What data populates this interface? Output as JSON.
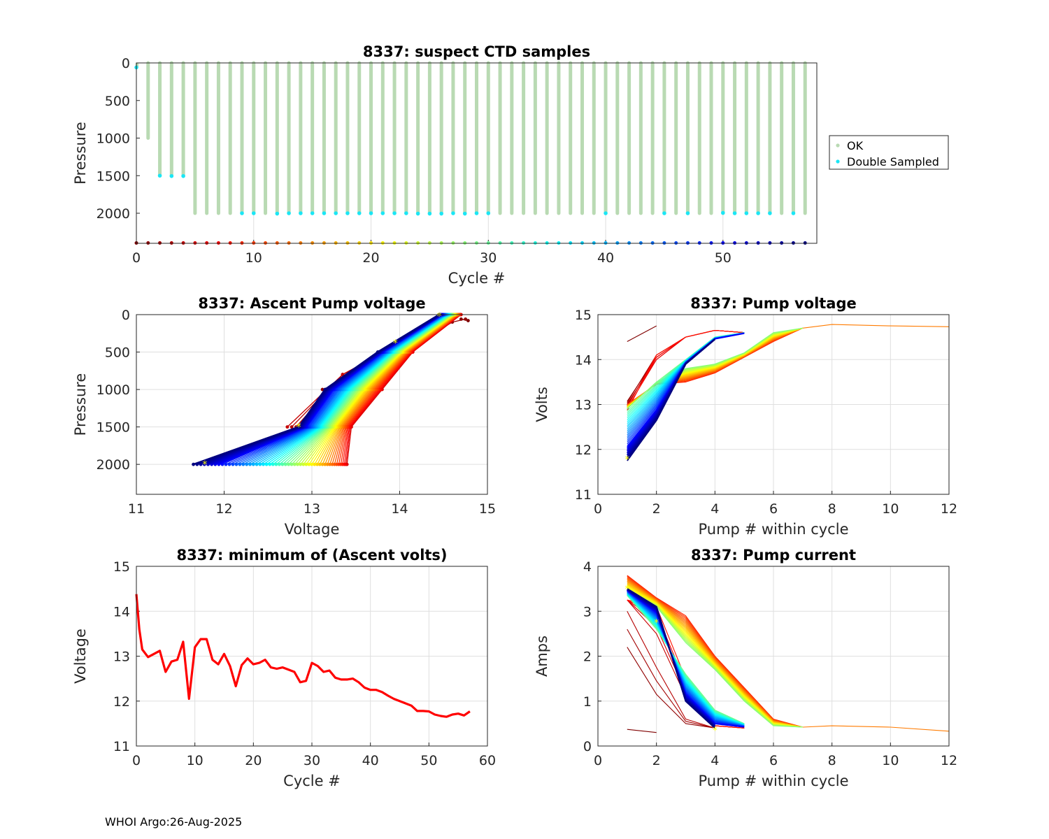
{
  "footer": "WHOI Argo:26-Aug-2025",
  "colors": {
    "ok": "#b9dab3",
    "double": "#1be6f5",
    "line": "#ff0000",
    "grid": "#dfdfdf",
    "marker": "#ffff00"
  },
  "chart_data": [
    {
      "id": "suspect",
      "type": "scatter",
      "title": "8337: suspect CTD samples",
      "xlabel": "Cycle #",
      "ylabel": "Pressure",
      "xlim": [
        0,
        58
      ],
      "ylim": [
        2400,
        0
      ],
      "xticks": [
        0,
        10,
        20,
        30,
        40,
        50
      ],
      "yticks": [
        0,
        500,
        1000,
        1500,
        2000
      ],
      "legend": {
        "position": "outside-right",
        "entries": [
          "OK",
          "Double Sampled"
        ]
      },
      "profile_max_pressure": [
        0,
        1000,
        1500,
        1500,
        1500,
        2000,
        2000,
        2000,
        2000,
        2000,
        2000,
        2000,
        2000,
        2000,
        2000,
        2000,
        2000,
        2000,
        2000,
        2000,
        2000,
        2000,
        2000,
        2000,
        2000,
        2000,
        2000,
        2000,
        2000,
        2000,
        2000,
        2000,
        2000,
        2000,
        2000,
        2000,
        2000,
        2000,
        2000,
        2000,
        2000,
        2000,
        2000,
        2000,
        2000,
        2000,
        2000,
        2000,
        2000,
        2000,
        2000,
        2000,
        2000,
        2000,
        2000,
        2000,
        2000,
        2000
      ],
      "double_sampled": [
        {
          "cycle": 0,
          "pressure": 60
        },
        {
          "cycle": 2,
          "pressure": 1500
        },
        {
          "cycle": 3,
          "pressure": 1505
        },
        {
          "cycle": 4,
          "pressure": 1505
        },
        {
          "cycle": 9,
          "pressure": 2000
        },
        {
          "cycle": 10,
          "pressure": 2000
        },
        {
          "cycle": 12,
          "pressure": 2005
        },
        {
          "cycle": 13,
          "pressure": 2000
        },
        {
          "cycle": 14,
          "pressure": 2000
        },
        {
          "cycle": 15,
          "pressure": 2000
        },
        {
          "cycle": 16,
          "pressure": 2000
        },
        {
          "cycle": 17,
          "pressure": 2000
        },
        {
          "cycle": 18,
          "pressure": 2000
        },
        {
          "cycle": 19,
          "pressure": 2000
        },
        {
          "cycle": 20,
          "pressure": 2000
        },
        {
          "cycle": 21,
          "pressure": 2000
        },
        {
          "cycle": 22,
          "pressure": 2000
        },
        {
          "cycle": 23,
          "pressure": 2000
        },
        {
          "cycle": 24,
          "pressure": 2005
        },
        {
          "cycle": 25,
          "pressure": 2005
        },
        {
          "cycle": 26,
          "pressure": 2005
        },
        {
          "cycle": 27,
          "pressure": 2000
        },
        {
          "cycle": 28,
          "pressure": 2005
        },
        {
          "cycle": 29,
          "pressure": 2000
        },
        {
          "cycle": 30,
          "pressure": 2000
        },
        {
          "cycle": 40,
          "pressure": 2000
        },
        {
          "cycle": 45,
          "pressure": 2000
        },
        {
          "cycle": 47,
          "pressure": 2000
        },
        {
          "cycle": 50,
          "pressure": 1995
        },
        {
          "cycle": 51,
          "pressure": 2000
        },
        {
          "cycle": 52,
          "pressure": 2000
        },
        {
          "cycle": 53,
          "pressure": 2000
        },
        {
          "cycle": 54,
          "pressure": 2000
        },
        {
          "cycle": 56,
          "pressure": 2000
        }
      ],
      "cycle_markers_pressure": 2400
    },
    {
      "id": "ascent",
      "type": "line",
      "title": "8337: Ascent Pump voltage",
      "xlabel": "Voltage",
      "ylabel": "Pressure",
      "xlim": [
        11,
        15
      ],
      "ylim": [
        2400,
        0
      ],
      "xticks": [
        11,
        12,
        13,
        14,
        15
      ],
      "yticks": [
        0,
        500,
        1000,
        1500,
        2000
      ],
      "note": "one line per cycle, coloured by cycle number (dark red = early, dark blue = late)"
    },
    {
      "id": "pumpv",
      "type": "line",
      "title": "8337: Pump voltage",
      "xlabel": "Pump # within cycle",
      "ylabel": "Volts",
      "xlim": [
        0,
        12
      ],
      "ylim": [
        11,
        15
      ],
      "xticks": [
        0,
        2,
        4,
        6,
        8,
        10,
        12
      ],
      "yticks": [
        11,
        12,
        13,
        14,
        15
      ]
    },
    {
      "id": "minv",
      "type": "line",
      "title": "8337: minimum of (Ascent volts)",
      "xlabel": "Cycle #",
      "ylabel": "Voltage",
      "xlim": [
        0,
        60
      ],
      "ylim": [
        11,
        15
      ],
      "xticks": [
        0,
        10,
        20,
        30,
        40,
        50,
        60
      ],
      "yticks": [
        11,
        12,
        13,
        14,
        15
      ],
      "x": [
        0,
        0.5,
        1,
        2,
        3,
        4,
        5,
        6,
        7,
        8,
        9,
        10,
        11,
        12,
        13,
        14,
        15,
        16,
        17,
        18,
        19,
        20,
        21,
        22,
        23,
        24,
        25,
        26,
        27,
        28,
        29,
        30,
        31,
        32,
        33,
        34,
        35,
        36,
        37,
        38,
        39,
        40,
        41,
        42,
        43,
        44,
        45,
        46,
        47,
        48,
        49,
        50,
        51,
        52,
        53,
        54,
        55,
        56,
        57
      ],
      "values": [
        14.38,
        13.6,
        13.15,
        12.98,
        13.05,
        13.12,
        12.65,
        12.88,
        12.92,
        13.32,
        12.05,
        13.2,
        13.38,
        13.38,
        12.92,
        12.82,
        13.05,
        12.78,
        12.33,
        12.8,
        12.95,
        12.82,
        12.85,
        12.92,
        12.75,
        12.72,
        12.75,
        12.7,
        12.65,
        12.42,
        12.45,
        12.85,
        12.78,
        12.65,
        12.68,
        12.52,
        12.48,
        12.48,
        12.5,
        12.42,
        12.3,
        12.25,
        12.25,
        12.2,
        12.12,
        12.05,
        12.0,
        11.95,
        11.9,
        11.78,
        11.78,
        11.77,
        11.7,
        11.67,
        11.65,
        11.7,
        11.72,
        11.68,
        11.77
      ]
    },
    {
      "id": "pumpc",
      "type": "line",
      "title": "8337: Pump current",
      "xlabel": "Pump # within cycle",
      "ylabel": "Amps",
      "xlim": [
        0,
        12
      ],
      "ylim": [
        0,
        4
      ],
      "xticks": [
        0,
        2,
        4,
        6,
        8,
        10,
        12
      ],
      "yticks": [
        0,
        1,
        2,
        3,
        4
      ]
    }
  ]
}
